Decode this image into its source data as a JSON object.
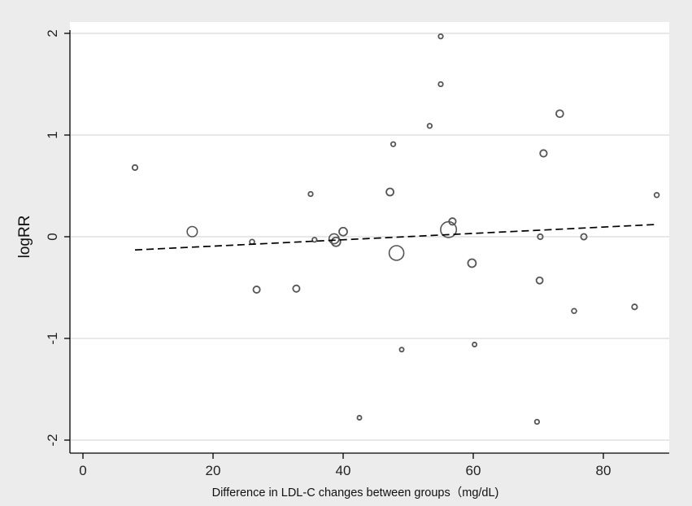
{
  "chart_data": {
    "type": "scatter",
    "title": "",
    "xlabel": "Difference in LDL-C changes between groups（mg/dL)",
    "ylabel": "logRR",
    "xlim": [
      -2,
      89
    ],
    "ylim": [
      -2.1,
      2.1
    ],
    "xticks": [
      "0",
      "20",
      "40",
      "60",
      "80"
    ],
    "yticks": [
      "-2",
      "-1",
      "0",
      "1",
      "2"
    ],
    "grid": "horizontal",
    "legend": "none",
    "colors": {
      "plot_background": "#ffffff",
      "outer_background": "#ececec",
      "gridline": "#e0e0e0",
      "marker_stroke": "#555555",
      "fit_line": "#000000",
      "axis": "#000000"
    },
    "points": [
      {
        "x": 8,
        "y": 0.68,
        "weight": 1.0
      },
      {
        "x": 16.8,
        "y": 0.05,
        "weight": 4.2
      },
      {
        "x": 26,
        "y": -0.05,
        "weight": 0.8
      },
      {
        "x": 26.7,
        "y": -0.52,
        "weight": 1.7
      },
      {
        "x": 32.8,
        "y": -0.51,
        "weight": 1.7
      },
      {
        "x": 35,
        "y": 0.42,
        "weight": 0.7
      },
      {
        "x": 35.6,
        "y": -0.03,
        "weight": 0.7
      },
      {
        "x": 38.6,
        "y": -0.02,
        "weight": 4.0
      },
      {
        "x": 38.9,
        "y": -0.05,
        "weight": 3.2
      },
      {
        "x": 40,
        "y": 0.05,
        "weight": 2.6
      },
      {
        "x": 42.5,
        "y": -1.78,
        "weight": 0.6
      },
      {
        "x": 47.2,
        "y": 0.44,
        "weight": 2.1
      },
      {
        "x": 47.7,
        "y": 0.91,
        "weight": 0.7
      },
      {
        "x": 48.2,
        "y": -0.16,
        "weight": 9.0
      },
      {
        "x": 49,
        "y": -1.11,
        "weight": 0.6
      },
      {
        "x": 53.3,
        "y": 1.09,
        "weight": 0.7
      },
      {
        "x": 55,
        "y": 1.97,
        "weight": 0.7
      },
      {
        "x": 55,
        "y": 1.5,
        "weight": 0.7
      },
      {
        "x": 56.2,
        "y": 0.07,
        "weight": 10.5
      },
      {
        "x": 56.8,
        "y": 0.15,
        "weight": 1.8
      },
      {
        "x": 59.8,
        "y": -0.26,
        "weight": 2.6
      },
      {
        "x": 60.2,
        "y": -1.06,
        "weight": 0.6
      },
      {
        "x": 69.8,
        "y": -1.82,
        "weight": 0.7
      },
      {
        "x": 70.2,
        "y": -0.43,
        "weight": 1.6
      },
      {
        "x": 70.3,
        "y": 0.0,
        "weight": 1.0
      },
      {
        "x": 70.8,
        "y": 0.82,
        "weight": 1.8
      },
      {
        "x": 73.3,
        "y": 1.21,
        "weight": 2.0
      },
      {
        "x": 75.5,
        "y": -0.73,
        "weight": 0.8
      },
      {
        "x": 77,
        "y": 0.0,
        "weight": 1.3
      },
      {
        "x": 84.8,
        "y": -0.69,
        "weight": 1.0
      },
      {
        "x": 88.2,
        "y": 0.41,
        "weight": 0.8
      }
    ],
    "fit_line": {
      "style": "dashed",
      "points": [
        [
          8,
          -0.13
        ],
        [
          88,
          0.12
        ]
      ]
    }
  }
}
